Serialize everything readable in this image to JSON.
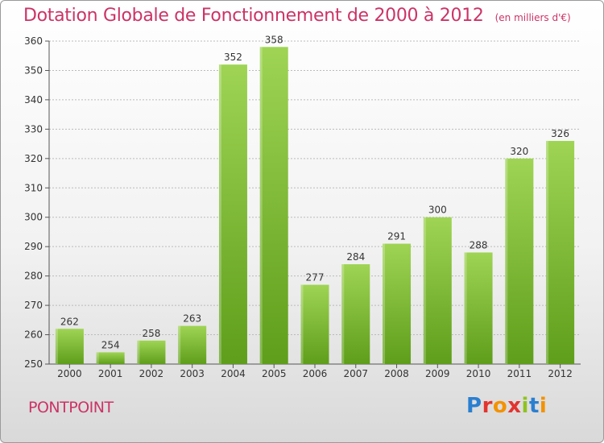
{
  "header": {
    "title": "Dotation Globale de Fonctionnement de 2000 à 2012",
    "unit": "(en milliers d'€)"
  },
  "footer": {
    "town": "PONTPOINT",
    "brand": "Proxiti",
    "brand_colors": [
      "#2a7fd0",
      "#e3342f",
      "#f39200",
      "#e3342f",
      "#8fc31f",
      "#2a7fd0",
      "#f39200"
    ]
  },
  "colors": {
    "bar_light": "#9fd454",
    "bar_dark": "#5e9e1a",
    "axis": "#555555",
    "grid": "#bbbbbb",
    "title": "#cc3366"
  },
  "chart_data": {
    "type": "bar",
    "title": "Dotation Globale de Fonctionnement de 2000 à 2012",
    "xlabel": "",
    "ylabel": "",
    "categories": [
      "2000",
      "2001",
      "2002",
      "2003",
      "2004",
      "2005",
      "2006",
      "2007",
      "2008",
      "2009",
      "2010",
      "2011",
      "2012"
    ],
    "values": [
      262,
      254,
      258,
      263,
      352,
      358,
      277,
      284,
      291,
      300,
      288,
      320,
      326
    ],
    "ylim": [
      250,
      360
    ],
    "yticks": [
      250,
      260,
      270,
      280,
      290,
      300,
      310,
      320,
      330,
      340,
      350,
      360
    ],
    "grid": true,
    "data_labels": true
  }
}
